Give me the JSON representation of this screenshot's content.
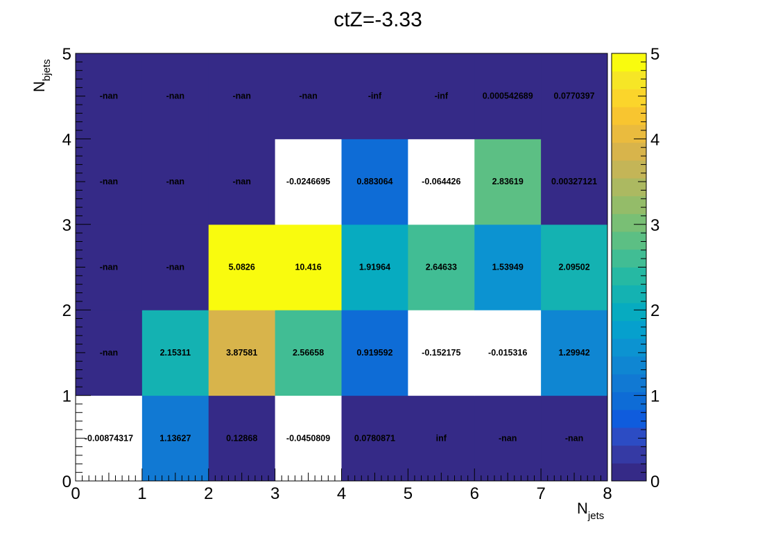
{
  "chart_data": {
    "type": "heatmap",
    "title": "ctZ=-3.33",
    "xlabel": {
      "main": "N",
      "sub": "jets"
    },
    "ylabel": {
      "main": "N",
      "sub": "bjets"
    },
    "x_edges": [
      0,
      1,
      2,
      3,
      4,
      5,
      6,
      7,
      8
    ],
    "y_edges": [
      0,
      1,
      2,
      3,
      4,
      5
    ],
    "x_ticks": [
      "0",
      "1",
      "2",
      "3",
      "4",
      "5",
      "6",
      "7",
      "8"
    ],
    "y_ticks": [
      "0",
      "1",
      "2",
      "3",
      "4",
      "5"
    ],
    "zlim": [
      0,
      5
    ],
    "z_ticks": [
      "0",
      "1",
      "2",
      "3",
      "4",
      "5"
    ],
    "colormap": "parula",
    "cells": [
      [
        {
          "label": "-0.00874317",
          "value": -0.00874317
        },
        {
          "label": "1.13627",
          "value": 1.13627
        },
        {
          "label": "0.12868",
          "value": 0.12868
        },
        {
          "label": "-0.0450809",
          "value": -0.0450809
        },
        {
          "label": "0.0780871",
          "value": 0.0780871
        },
        {
          "label": "inf",
          "value": "inf"
        },
        {
          "label": "-nan",
          "value": "nan"
        },
        {
          "label": "-nan",
          "value": "nan"
        }
      ],
      [
        {
          "label": "-nan",
          "value": "nan"
        },
        {
          "label": "2.15311",
          "value": 2.15311
        },
        {
          "label": "3.87581",
          "value": 3.87581
        },
        {
          "label": "2.56658",
          "value": 2.56658
        },
        {
          "label": "0.919592",
          "value": 0.919592
        },
        {
          "label": "-0.152175",
          "value": -0.152175
        },
        {
          "label": "-0.015316",
          "value": -0.015316
        },
        {
          "label": "1.29942",
          "value": 1.29942
        }
      ],
      [
        {
          "label": "-nan",
          "value": "nan"
        },
        {
          "label": "-nan",
          "value": "nan"
        },
        {
          "label": "5.0826",
          "value": 5.0826
        },
        {
          "label": "10.416",
          "value": 10.416
        },
        {
          "label": "1.91964",
          "value": 1.91964
        },
        {
          "label": "2.64633",
          "value": 2.64633
        },
        {
          "label": "1.53949",
          "value": 1.53949
        },
        {
          "label": "2.09502",
          "value": 2.09502
        }
      ],
      [
        {
          "label": "-nan",
          "value": "nan"
        },
        {
          "label": "-nan",
          "value": "nan"
        },
        {
          "label": "-nan",
          "value": "nan"
        },
        {
          "label": "-0.0246695",
          "value": -0.0246695
        },
        {
          "label": "0.883064",
          "value": 0.883064
        },
        {
          "label": "-0.064426",
          "value": -0.064426
        },
        {
          "label": "2.83619",
          "value": 2.83619
        },
        {
          "label": "0.00327121",
          "value": 0.00327121
        }
      ],
      [
        {
          "label": "-nan",
          "value": "nan"
        },
        {
          "label": "-nan",
          "value": "nan"
        },
        {
          "label": "-nan",
          "value": "nan"
        },
        {
          "label": "-nan",
          "value": "nan"
        },
        {
          "label": "-inf",
          "value": "-inf"
        },
        {
          "label": "-inf",
          "value": "-inf"
        },
        {
          "label": "0.000542689",
          "value": 0.000542689
        },
        {
          "label": "0.0770397",
          "value": 0.0770397
        }
      ]
    ],
    "colors": {
      "background": "#ffffff",
      "empty_cell": "#352a87",
      "overflow_cell": "#f9fb0e",
      "underflow_cell": "#ffffff",
      "palette": [
        "#352a87",
        "#353aa4",
        "#2c4cc4",
        "#0f5cdd",
        "#0e6cd6",
        "#1179d3",
        "#0f86d2",
        "#0c93d1",
        "#06a0cd",
        "#07abc0",
        "#14b2b2",
        "#26b9a3",
        "#41bd94",
        "#5cbf84",
        "#79bf75",
        "#94bc69",
        "#acb961",
        "#c4b557",
        "#d8b44b",
        "#eabb3e",
        "#f8c530",
        "#fbd52b",
        "#f6e626",
        "#f9fb0e"
      ]
    }
  }
}
